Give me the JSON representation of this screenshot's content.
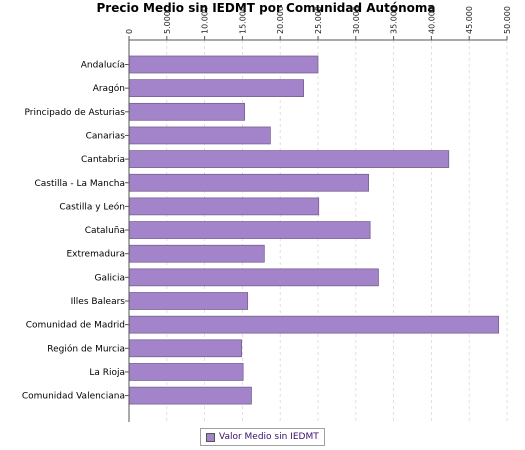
{
  "chart_data": {
    "type": "bar",
    "orientation": "horizontal",
    "title": "Precio Medio sin IEDMT por Comunidad Autónoma",
    "categories": [
      "Andalucía",
      "Aragón",
      "Principado de Asturias",
      "Canarias",
      "Cantabria",
      "Castilla - La Mancha",
      "Castilla y León",
      "Cataluña",
      "Extremadura",
      "Galicia",
      "Illes Balears",
      "Comunidad de Madrid",
      "Región de Murcia",
      "La Rioja",
      "Comunidad Valenciana"
    ],
    "series": [
      {
        "name": "Valor Medio sin IEDMT",
        "color": "#a383c9",
        "values": [
          25000,
          23100,
          15300,
          18700,
          42300,
          31700,
          25100,
          31900,
          17900,
          33000,
          15700,
          48900,
          14900,
          15100,
          16200
        ]
      }
    ],
    "xlim": [
      0,
      50000
    ],
    "ticks": [
      "0",
      "5.000",
      "10.000",
      "15.000",
      "20.000",
      "25.000",
      "30.000",
      "35.000",
      "40.000",
      "45.000",
      "50.000"
    ],
    "tick_values": [
      0,
      5000,
      10000,
      15000,
      20000,
      25000,
      30000,
      35000,
      40000,
      45000,
      50000
    ],
    "axis_position": "top",
    "grid": true,
    "legend_position": "bottom"
  }
}
